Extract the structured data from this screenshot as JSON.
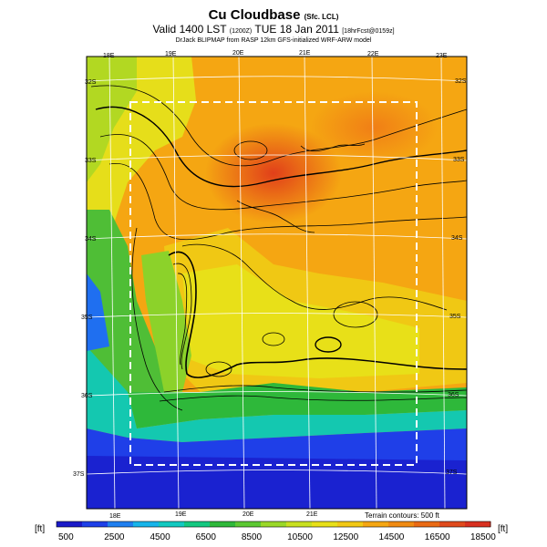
{
  "header": {
    "title": "Cu Cloudbase",
    "title_suffix": "(Sfc. LCL)",
    "subtitle": "Valid 1400 LST",
    "subtitle_small": "(1200Z)",
    "subtitle_date": "TUE 18 Jan 2011",
    "subtitle_tail": "[18hrFcst@0159z]",
    "credit": "DrJack BLIPMAP from RASP 12km GFS-initialized WRF-ARW model"
  },
  "map": {
    "lon_labels_top": [
      "18E",
      "19E",
      "20E",
      "21E",
      "22E",
      "23E"
    ],
    "lon_labels_bottom": [
      "18E",
      "19E",
      "20E",
      "21E"
    ],
    "lat_labels_left": [
      "32S",
      "33S",
      "34S",
      "35S",
      "36S",
      "37S"
    ],
    "lat_labels_right": [
      "32S",
      "33S",
      "34S",
      "35S",
      "36S",
      "37S"
    ],
    "terrain_note": "Terrain contours: 500 ft"
  },
  "colorbar": {
    "unit": "[ft]",
    "labels": [
      "500",
      "2500",
      "4500",
      "6500",
      "8500",
      "10500",
      "12500",
      "14500",
      "16500",
      "18500"
    ],
    "colors": [
      "#1a1ac8",
      "#1e40e8",
      "#1f7ff0",
      "#17b4ea",
      "#12c9c0",
      "#14c880",
      "#2fb83a",
      "#5cc832",
      "#9ad828",
      "#c8e020",
      "#e8e018",
      "#f2c814",
      "#f5a612",
      "#f08a12",
      "#ea6a14",
      "#e04a1c",
      "#d83020"
    ]
  }
}
